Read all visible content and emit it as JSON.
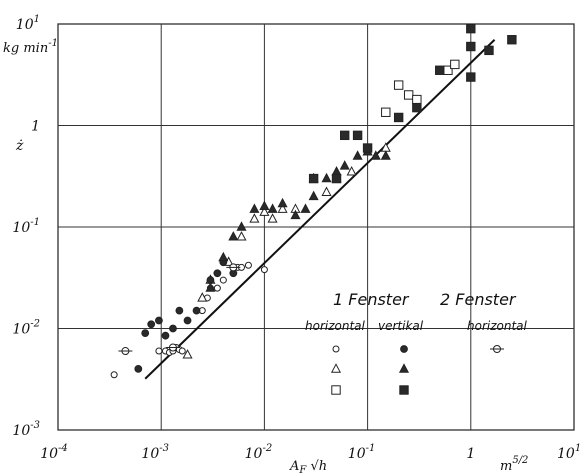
{
  "chart_data": {
    "type": "scatter",
    "x_scale": "log",
    "y_scale": "log",
    "xlim": [
      0.0001,
      10
    ],
    "ylim": [
      0.001,
      10
    ],
    "grid": true,
    "xlabel": "A_F √h",
    "xunit": "m^5/2",
    "ylabel": "ż",
    "yunit": "kg min^-1",
    "x_ticks": [
      {
        "base": "10",
        "exp": "-4",
        "value": 0.0001
      },
      {
        "base": "10",
        "exp": "-3",
        "value": 0.001
      },
      {
        "base": "10",
        "exp": "-2",
        "value": 0.01
      },
      {
        "base": "10",
        "exp": "-1",
        "value": 0.1
      },
      {
        "base": "1",
        "exp": "",
        "value": 1
      },
      {
        "base": "10",
        "exp": "1",
        "value": 10
      }
    ],
    "y_ticks": [
      {
        "base": "10",
        "exp": "1",
        "value": 10
      },
      {
        "base": "1",
        "exp": "",
        "value": 1
      },
      {
        "base": "10",
        "exp": "-1",
        "value": 0.1
      },
      {
        "base": "10",
        "exp": "-2",
        "value": 0.01
      },
      {
        "base": "10",
        "exp": "-3",
        "value": 0.001
      }
    ],
    "fit_line": {
      "x": [
        0.0007,
        1.7
      ],
      "y": [
        0.0032,
        7.0
      ]
    },
    "legend": {
      "group1_title": "1 Fenster",
      "group2_title": "2 Fenster",
      "col_horizontal": "horizontal",
      "col_vertikal": "vertikal",
      "col_2_horizontal": "horizontal"
    },
    "series": [
      {
        "name": "1 Fenster horizontal ○",
        "marker": "circle-open",
        "points": [
          [
            0.00035,
            0.0035
          ],
          [
            0.00095,
            0.006
          ],
          [
            0.0011,
            0.006
          ],
          [
            0.0012,
            0.0058
          ],
          [
            0.0013,
            0.006
          ],
          [
            0.0014,
            0.0065
          ],
          [
            0.0015,
            0.0062
          ],
          [
            0.0016,
            0.006
          ],
          [
            0.0025,
            0.015
          ],
          [
            0.0028,
            0.02
          ],
          [
            0.003,
            0.025
          ],
          [
            0.0035,
            0.025
          ],
          [
            0.004,
            0.03
          ],
          [
            0.005,
            0.035
          ],
          [
            0.0055,
            0.04
          ],
          [
            0.006,
            0.04
          ],
          [
            0.007,
            0.042
          ],
          [
            0.01,
            0.038
          ]
        ]
      },
      {
        "name": "1 Fenster horizontal △",
        "marker": "triangle-open",
        "points": [
          [
            0.0018,
            0.0055
          ],
          [
            0.0025,
            0.02
          ],
          [
            0.003,
            0.03
          ],
          [
            0.0045,
            0.045
          ],
          [
            0.006,
            0.08
          ],
          [
            0.008,
            0.12
          ],
          [
            0.01,
            0.14
          ],
          [
            0.012,
            0.12
          ],
          [
            0.015,
            0.15
          ],
          [
            0.02,
            0.15
          ],
          [
            0.03,
            0.3
          ],
          [
            0.04,
            0.22
          ],
          [
            0.05,
            0.3
          ],
          [
            0.07,
            0.35
          ],
          [
            0.1,
            0.55
          ],
          [
            0.15,
            0.6
          ]
        ]
      },
      {
        "name": "1 Fenster horizontal □",
        "marker": "square-open",
        "points": [
          [
            0.15,
            1.35
          ],
          [
            0.2,
            2.5
          ],
          [
            0.25,
            2.0
          ],
          [
            0.3,
            1.8
          ],
          [
            0.6,
            3.5
          ],
          [
            0.7,
            4.0
          ]
        ]
      },
      {
        "name": "1 Fenster vertikal ●",
        "marker": "circle-filled",
        "points": [
          [
            0.0006,
            0.004
          ],
          [
            0.0007,
            0.009
          ],
          [
            0.0008,
            0.011
          ],
          [
            0.00095,
            0.012
          ],
          [
            0.0011,
            0.0085
          ],
          [
            0.0013,
            0.01
          ],
          [
            0.0015,
            0.015
          ],
          [
            0.0018,
            0.012
          ],
          [
            0.0022,
            0.015
          ],
          [
            0.003,
            0.03
          ],
          [
            0.0035,
            0.035
          ],
          [
            0.004,
            0.045
          ],
          [
            0.005,
            0.035
          ]
        ]
      },
      {
        "name": "1 Fenster vertikal ▲",
        "marker": "triangle-filled",
        "points": [
          [
            0.003,
            0.025
          ],
          [
            0.004,
            0.05
          ],
          [
            0.005,
            0.08
          ],
          [
            0.006,
            0.1
          ],
          [
            0.008,
            0.15
          ],
          [
            0.01,
            0.16
          ],
          [
            0.012,
            0.15
          ],
          [
            0.015,
            0.17
          ],
          [
            0.02,
            0.13
          ],
          [
            0.025,
            0.15
          ],
          [
            0.03,
            0.2
          ],
          [
            0.04,
            0.3
          ],
          [
            0.05,
            0.35
          ],
          [
            0.06,
            0.4
          ],
          [
            0.08,
            0.5
          ],
          [
            0.1,
            0.55
          ],
          [
            0.12,
            0.5
          ],
          [
            0.15,
            0.5
          ]
        ]
      },
      {
        "name": "1 Fenster vertikal ■",
        "marker": "square-filled",
        "points": [
          [
            0.03,
            0.3
          ],
          [
            0.05,
            0.3
          ],
          [
            0.06,
            0.8
          ],
          [
            0.08,
            0.8
          ],
          [
            0.1,
            0.6
          ],
          [
            0.2,
            1.2
          ],
          [
            0.3,
            1.5
          ],
          [
            0.5,
            3.5
          ],
          [
            1.0,
            3.0
          ],
          [
            1.0,
            6.0
          ],
          [
            1.0,
            9.0
          ],
          [
            1.5,
            5.5
          ],
          [
            2.5,
            7.0
          ]
        ]
      },
      {
        "name": "2 Fenster horizontal ⊖",
        "marker": "circle-bar",
        "points": [
          [
            0.00045,
            0.006
          ],
          [
            0.0013,
            0.0065
          ],
          [
            0.005,
            0.04
          ]
        ]
      }
    ]
  }
}
